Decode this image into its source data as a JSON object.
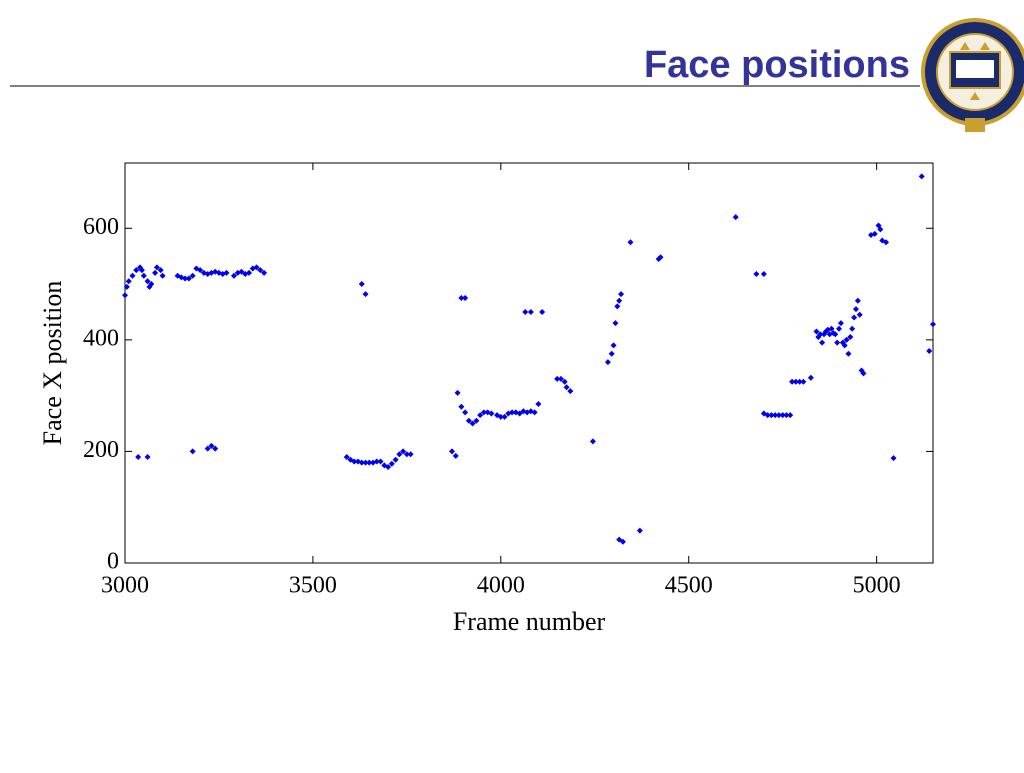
{
  "chart_data": {
    "type": "scatter",
    "title": "Face positions",
    "x_label": "Frame number",
    "y_label": "Face X position",
    "color": "#0000ee",
    "xlim": [
      3000,
      5150
    ],
    "xticks": [
      3000,
      3500,
      4000,
      4500,
      5000
    ],
    "ylim": [
      0,
      717
    ],
    "yticks": [
      0,
      200,
      400,
      600
    ],
    "x": [
      3000,
      3005,
      3010,
      3020,
      3030,
      3040,
      3045,
      3050,
      3060,
      3065,
      3070,
      3080,
      3085,
      3095,
      3100,
      3035,
      3060,
      3140,
      3150,
      3160,
      3170,
      3180,
      3190,
      3200,
      3210,
      3220,
      3230,
      3240,
      3250,
      3260,
      3270,
      3290,
      3300,
      3310,
      3320,
      3330,
      3340,
      3350,
      3360,
      3370,
      3180,
      3220,
      3230,
      3240,
      3590,
      3600,
      3610,
      3620,
      3630,
      3640,
      3650,
      3660,
      3670,
      3680,
      3690,
      3700,
      3710,
      3720,
      3730,
      3740,
      3750,
      3760,
      3630,
      3640,
      3870,
      3880,
      3885,
      3895,
      3905,
      3915,
      3925,
      3935,
      3945,
      3955,
      3965,
      3975,
      3990,
      4000,
      4010,
      4020,
      4030,
      4040,
      4050,
      4060,
      4070,
      4080,
      4090,
      4100,
      3895,
      3905,
      4065,
      4080,
      4110,
      4150,
      4160,
      4170,
      4175,
      4185,
      4245,
      4285,
      4295,
      4300,
      4305,
      4310,
      4315,
      4320,
      4315,
      4325,
      4345,
      4370,
      4420,
      4425,
      4625,
      4680,
      4700,
      4700,
      4710,
      4720,
      4730,
      4740,
      4750,
      4760,
      4770,
      4775,
      4785,
      4795,
      4805,
      4825,
      4840,
      4845,
      4850,
      4855,
      4860,
      4865,
      4870,
      4875,
      4880,
      4885,
      4890,
      4895,
      4900,
      4905,
      4910,
      4915,
      4920,
      4925,
      4930,
      4935,
      4940,
      4945,
      4950,
      4955,
      4960,
      4965,
      4985,
      4995,
      5005,
      5010,
      5015,
      5025,
      5045,
      5120,
      5140,
      5150
    ],
    "values": [
      480,
      495,
      505,
      515,
      525,
      530,
      525,
      515,
      505,
      495,
      500,
      520,
      530,
      525,
      515,
      190,
      190,
      515,
      512,
      510,
      510,
      515,
      528,
      525,
      520,
      518,
      520,
      522,
      520,
      518,
      520,
      515,
      520,
      522,
      518,
      520,
      528,
      530,
      525,
      520,
      200,
      205,
      210,
      205,
      190,
      185,
      182,
      182,
      180,
      180,
      180,
      180,
      182,
      182,
      175,
      172,
      178,
      185,
      195,
      200,
      195,
      195,
      500,
      482,
      200,
      192,
      305,
      280,
      270,
      255,
      250,
      255,
      265,
      270,
      270,
      268,
      265,
      262,
      262,
      268,
      270,
      270,
      268,
      272,
      270,
      272,
      270,
      285,
      475,
      475,
      450,
      450,
      450,
      330,
      330,
      325,
      315,
      308,
      218,
      360,
      375,
      390,
      430,
      460,
      470,
      482,
      42,
      38,
      575,
      58,
      545,
      548,
      620,
      518,
      518,
      268,
      265,
      265,
      265,
      265,
      265,
      265,
      265,
      325,
      325,
      325,
      325,
      332,
      415,
      405,
      410,
      395,
      410,
      415,
      418,
      410,
      420,
      412,
      410,
      395,
      420,
      430,
      395,
      390,
      400,
      375,
      405,
      420,
      440,
      455,
      470,
      445,
      345,
      340,
      588,
      590,
      605,
      598,
      578,
      575,
      188,
      693,
      380,
      428
    ]
  }
}
